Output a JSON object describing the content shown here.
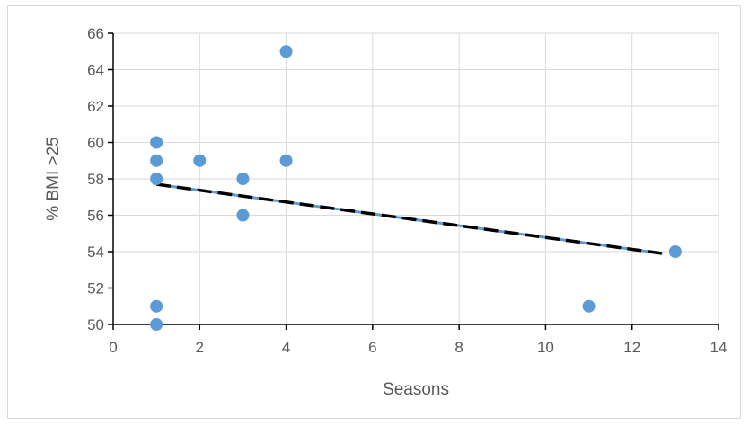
{
  "chart_data": {
    "type": "scatter",
    "title": "",
    "xlabel": "Seasons",
    "ylabel": "% BMI >25",
    "xlim": [
      0,
      14
    ],
    "ylim": [
      50,
      66
    ],
    "xticks": [
      0,
      2,
      4,
      6,
      8,
      10,
      12,
      14
    ],
    "yticks": [
      50,
      52,
      54,
      56,
      58,
      60,
      62,
      64,
      66
    ],
    "grid": true,
    "legend": "none",
    "series": [
      {
        "points": [
          {
            "x": 1,
            "y": 60
          },
          {
            "x": 1,
            "y": 59
          },
          {
            "x": 1,
            "y": 58
          },
          {
            "x": 1,
            "y": 51
          },
          {
            "x": 1,
            "y": 50
          },
          {
            "x": 2,
            "y": 59
          },
          {
            "x": 3,
            "y": 58
          },
          {
            "x": 3,
            "y": 56
          },
          {
            "x": 4,
            "y": 65
          },
          {
            "x": 4,
            "y": 59
          },
          {
            "x": 11,
            "y": 51
          },
          {
            "x": 13,
            "y": 54
          }
        ],
        "color": "#5b9bd5"
      }
    ],
    "trendline": {
      "type": "linear",
      "from": {
        "x": 1,
        "y": 57.7
      },
      "to": {
        "x": 12.7,
        "y": 53.9
      },
      "color": "#000000",
      "dash_accent_color": "#5b9bd5"
    },
    "colors": {
      "grid": "#d9d9d9",
      "axis": "#000000",
      "text": "#595959"
    }
  }
}
